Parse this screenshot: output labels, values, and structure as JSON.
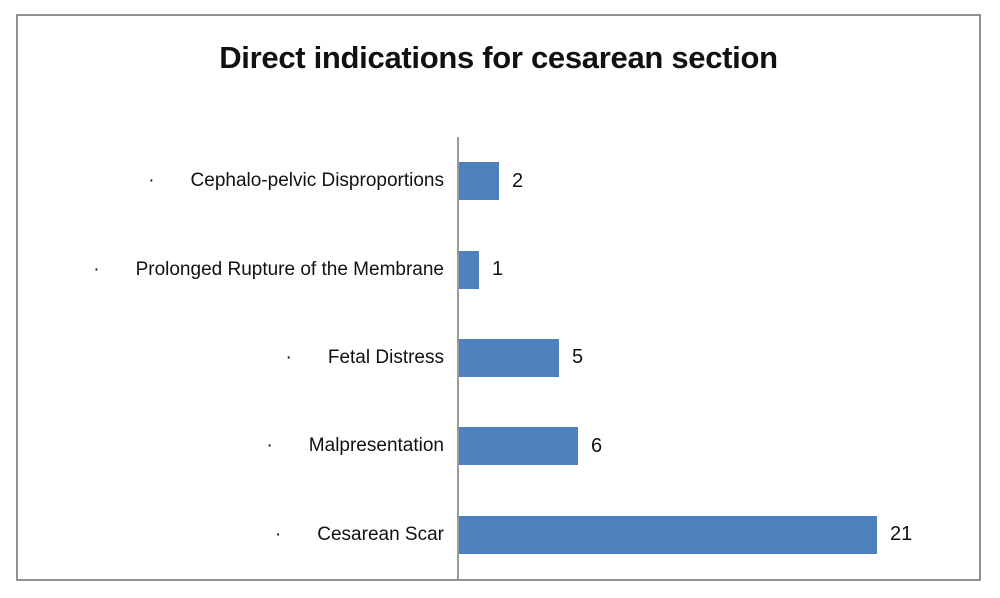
{
  "chart_data": {
    "type": "bar",
    "orientation": "horizontal",
    "title": "Direct indications for cesarean section",
    "categories": [
      "Cephalo-pelvic Disproportions",
      "Prolonged Rupture of the Membrane",
      "Fetal Distress",
      "Malpresentation",
      "Cesarean Scar"
    ],
    "values": [
      2,
      1,
      5,
      6,
      21
    ],
    "label_bullet": "·",
    "data_labels": true,
    "xlabel": "",
    "ylabel": "",
    "legend": "none",
    "grid": false,
    "axis_tick_labels_visible": false,
    "bar_color": "#4F81BD",
    "axis_line_color": "#9a9a9a",
    "border_color": "#919191",
    "background_color": "#ffffff",
    "text_color": "#111111"
  }
}
